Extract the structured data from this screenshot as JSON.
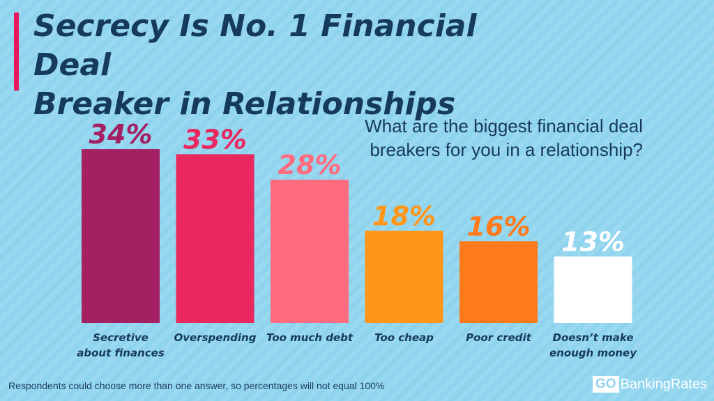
{
  "header": {
    "title_line1": "Secrecy Is No. 1 Financial Deal",
    "title_line2": "Breaker in Relationships"
  },
  "question": {
    "line1": "What are the biggest financial deal",
    "line2": "breakers for you in a relationship?"
  },
  "footnote": "Respondents could choose more than one answer, so percentages will not equal 100%",
  "logo": {
    "go": "GO",
    "text": "BankingRates"
  },
  "colors": {
    "title": "#163a5c",
    "accent": "#e8175d",
    "background": "#8fd4ee",
    "bars": [
      "#a51f63",
      "#e8285f",
      "#ff6b7f",
      "#ff9619",
      "#ff7a1a",
      "#ffffff"
    ]
  },
  "chart_data": {
    "type": "bar",
    "title": "Secrecy Is No. 1 Financial Deal Breaker in Relationships",
    "categories": [
      [
        "Secretive",
        "about finances"
      ],
      [
        "Overspending"
      ],
      [
        "Too much debt"
      ],
      [
        "Too cheap"
      ],
      [
        "Poor credit"
      ],
      [
        "Doesn’t make",
        "enough money"
      ]
    ],
    "values": [
      34,
      33,
      28,
      18,
      16,
      13
    ],
    "value_labels": [
      "34%",
      "33%",
      "28%",
      "18%",
      "16%",
      "13%"
    ],
    "ylim": [
      0,
      100
    ],
    "grid": false,
    "legend": "none"
  }
}
